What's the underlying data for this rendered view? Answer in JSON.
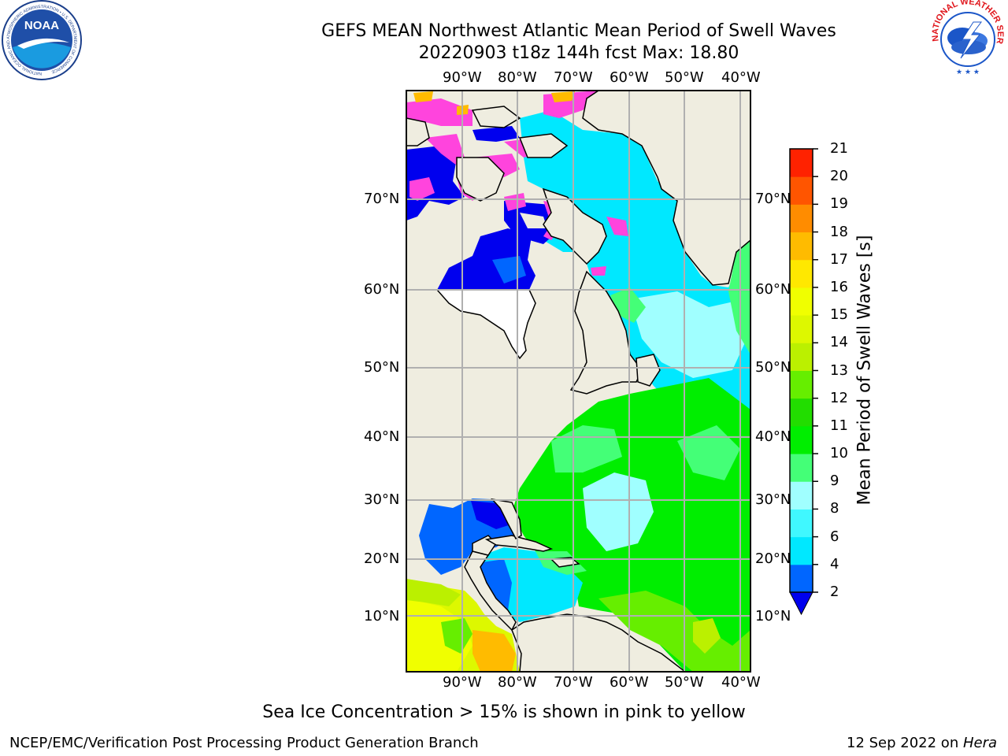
{
  "title": {
    "line1": "GEFS MEAN Northwest Atlantic Mean Period of Swell Waves",
    "line2": "20220903 t18z 144h fcst   Max: 18.80"
  },
  "logos": {
    "left": {
      "name": "noaa-logo",
      "text": "NOAA",
      "ring_text": "NATIONAL OCEANIC AND ATMOSPHERIC ADMINISTRATION • U.S. DEPARTMENT OF COMMERCE"
    },
    "right": {
      "name": "nws-logo",
      "ring_text": "NATIONAL WEATHER SERVICE"
    }
  },
  "map": {
    "projection": "Mercator",
    "lon_range": [
      -98,
      -36
    ],
    "lat_range": [
      2,
      79
    ],
    "longitude_ticks": [
      "90°W",
      "80°W",
      "70°W",
      "60°W",
      "50°W",
      "40°W"
    ],
    "latitude_ticks": [
      "10°N",
      "20°N",
      "30°N",
      "40°N",
      "50°N",
      "60°N",
      "70°N"
    ],
    "grid": true,
    "colors": {
      "land": "#efede0",
      "missing": "#ffffff",
      "gridline": "#b0b0b0",
      "coast": "#000000"
    }
  },
  "colorbar": {
    "label": "Mean Period of Swell Waves [s]",
    "tick_labels": [
      "2",
      "4",
      "6",
      "8",
      "9",
      "10",
      "11",
      "12",
      "13",
      "14",
      "15",
      "16",
      "17",
      "18",
      "19",
      "20",
      "21"
    ],
    "extend": "min",
    "colors": [
      "#0066ff",
      "#00e8ff",
      "#40f8ff",
      "#a0ffff",
      "#44ff77",
      "#00ee00",
      "#22dd00",
      "#66ee00",
      "#bbf000",
      "#ddf800",
      "#f0ff00",
      "#ffe800",
      "#ffbb00",
      "#ff8c00",
      "#ff5500",
      "#ff2200"
    ],
    "under_color": "#0000ee"
  },
  "caption": "Sea Ice Concentration > 15% is shown in pink to yellow",
  "footer": {
    "left": "NCEP/EMC/Verification Post Processing Product Generation Branch",
    "right_prefix": "12 Sep 2022 on ",
    "right_host": "Hera"
  }
}
